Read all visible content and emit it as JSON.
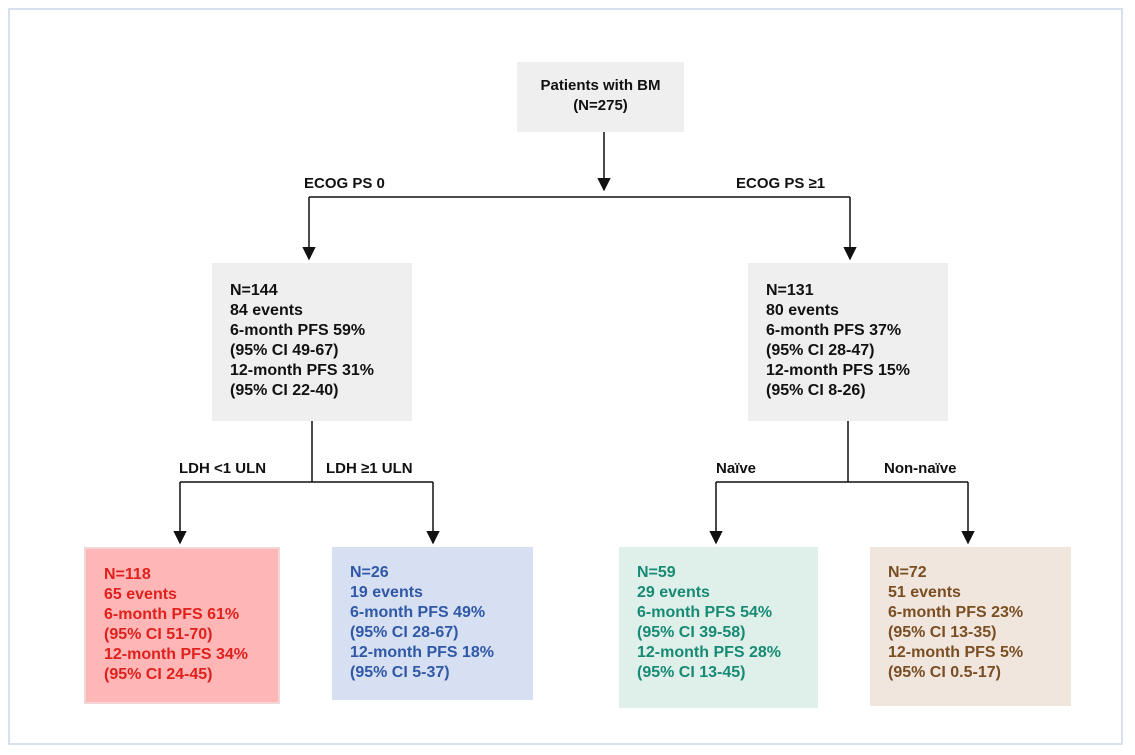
{
  "root": {
    "line1": "Patients with BM",
    "line2": "(N=275)"
  },
  "branches": {
    "ecog0": "ECOG PS 0",
    "ecog1": "ECOG PS ≥1",
    "ldh_low": "LDH <1 ULN",
    "ldh_high": "LDH ≥1 ULN",
    "naive": "Naïve",
    "non_naive": "Non-naïve"
  },
  "nodes": {
    "ecog0": [
      "N=144",
      "84 events",
      "6-month PFS 59%",
      "(95% CI 49-67)",
      "12-month PFS 31%",
      "(95% CI 22-40)"
    ],
    "ecog1": [
      "N=131",
      "80 events",
      "6-month PFS 37%",
      "(95% CI 28-47)",
      "12-month PFS 15%",
      "(95% CI 8-26)"
    ],
    "ldh_low": [
      "N=118",
      "65 events",
      "6-month PFS 61%",
      "(95% CI 51-70)",
      "12-month PFS 34%",
      "(95% CI 24-45)"
    ],
    "ldh_high": [
      "N=26",
      "19 events",
      "6-month PFS 49%",
      "(95% CI 28-67)",
      "12-month PFS 18%",
      "(95% CI 5-37)"
    ],
    "naive": [
      "N=59",
      "29 events",
      "6-month PFS 54%",
      "(95% CI 39-58)",
      "12-month PFS 28%",
      "(95% CI 13-45)"
    ],
    "non_naive": [
      "N=72",
      "51 events",
      "6-month PFS 23%",
      "(95% CI 13-35)",
      "12-month PFS 5%",
      "(95% CI 0.5-17)"
    ]
  },
  "colors": {
    "ldh_low_text": "#e0201c",
    "ldh_low_fill": "#ffb6b6",
    "ldh_high_text": "#2f58a6",
    "ldh_high_fill": "#d7e0f3",
    "naive_text": "#178a73",
    "naive_fill": "#dff0eb",
    "non_naive_text": "#7a4e22",
    "non_naive_fill": "#f0e6dd"
  }
}
